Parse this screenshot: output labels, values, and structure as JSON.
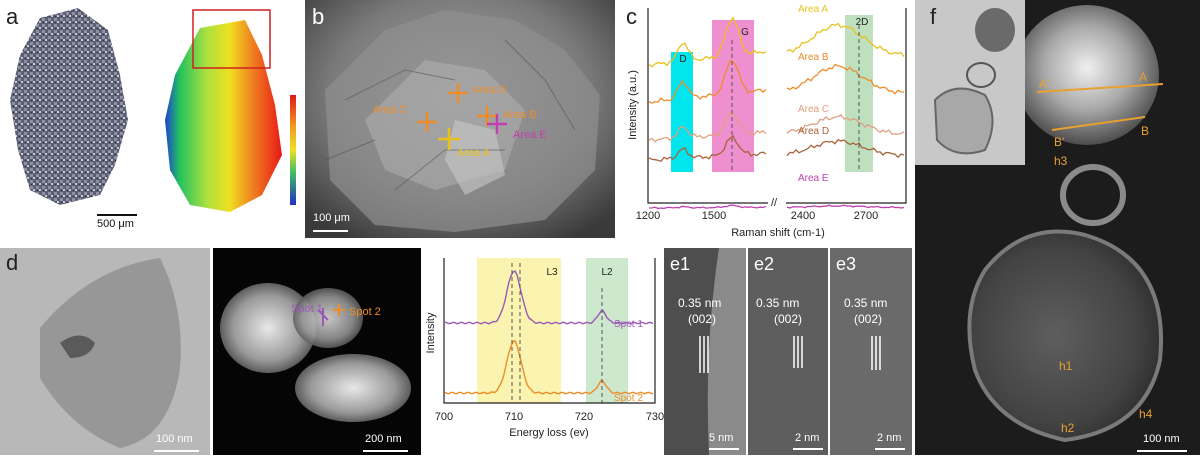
{
  "panels": {
    "a": {
      "label": "a",
      "scale": "500 μm"
    },
    "b": {
      "label": "b",
      "scale": "100 μm",
      "areas": [
        "Area D",
        "Area C",
        "Area B",
        "Area E",
        "Area A"
      ]
    },
    "c": {
      "label": "c"
    },
    "d": {
      "label": "d",
      "scale_left": "100 nm",
      "scale_right": "200 nm",
      "spots": [
        "Spot 1",
        "Spot 2"
      ]
    },
    "e": {
      "labels": [
        "e1",
        "e2",
        "e3"
      ],
      "spacing": "0.35 nm",
      "plane": "(002)",
      "scales": [
        "5 nm",
        "2 nm",
        "2 nm"
      ]
    },
    "f": {
      "label": "f",
      "scale": "100 nm",
      "marks": [
        "A'",
        "A",
        "B'",
        "B",
        "h3",
        "h1",
        "h2",
        "h4"
      ]
    }
  },
  "chart_data": [
    {
      "type": "line",
      "panel": "c",
      "xlabel": "Raman shift (cm-1)",
      "ylabel": "Intensity (a.u.)",
      "x_ticks": [
        "1200",
        "1500",
        "2400",
        "2700"
      ],
      "bands": [
        {
          "name": "D",
          "color": "#00e5ee"
        },
        {
          "name": "G",
          "color": "#ef8fcf"
        },
        {
          "name": "2D",
          "color": "#bfe0bf"
        }
      ],
      "series": [
        {
          "name": "Area A",
          "color": "#e8c21a"
        },
        {
          "name": "Area B",
          "color": "#ee8c2a"
        },
        {
          "name": "Area C",
          "color": "#e0a080"
        },
        {
          "name": "Area D",
          "color": "#a8623a"
        },
        {
          "name": "Area E",
          "color": "#c040b0"
        }
      ]
    },
    {
      "type": "line",
      "panel": "d",
      "xlabel": "Energy loss (ev)",
      "ylabel": "Intensity",
      "x_ticks": [
        "700",
        "710",
        "720",
        "730"
      ],
      "xlim": [
        700,
        730
      ],
      "bands": [
        {
          "name": "L3",
          "color": "#fbf4b0"
        },
        {
          "name": "L2",
          "color": "#cde8cd"
        }
      ],
      "series": [
        {
          "name": "Spot 1",
          "color": "#9b59b6"
        },
        {
          "name": "Spot 2",
          "color": "#ee8c2a"
        }
      ]
    }
  ]
}
